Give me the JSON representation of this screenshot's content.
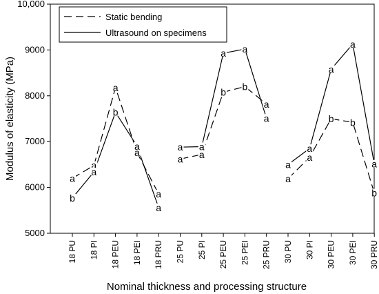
{
  "chart_data": {
    "type": "line",
    "xlabel": "Nominal thickness and processing structure",
    "ylabel": "Modulus of elasticity (MPa)",
    "ylim": [
      5000,
      10000
    ],
    "yticks": [
      "5000",
      "6000",
      "7000",
      "8000",
      "9000",
      "10,000"
    ],
    "categories": [
      "18 PU",
      "18 PI",
      "18 PEU",
      "18 PEI",
      "18 PRU",
      "25 PU",
      "25 PI",
      "25 PEU",
      "25 PEI",
      "25 PRU",
      "30 PU",
      "30 PI",
      "30 PEU",
      "30 PEI",
      "30 PRU"
    ],
    "groups": [
      [
        0,
        1,
        2,
        3,
        4
      ],
      [
        5,
        6,
        7,
        8,
        9
      ],
      [
        10,
        11,
        12,
        13,
        14
      ]
    ],
    "legend_position": "top-left",
    "series": [
      {
        "name": "Static bending",
        "style": "dashed",
        "values": [
          6200,
          6480,
          8180,
          6760,
          5860,
          6620,
          6720,
          8080,
          8200,
          7820,
          6190,
          6660,
          7500,
          7420,
          5880
        ],
        "labels": [
          "a",
          "a",
          "a",
          "a",
          "a",
          "a",
          "a",
          "b",
          "b",
          "a",
          "a",
          "a",
          "b",
          "b",
          "b"
        ]
      },
      {
        "name": "Ultrasound on specimens",
        "style": "solid",
        "values": [
          5770,
          6340,
          7640,
          6900,
          5560,
          6880,
          6890,
          8930,
          9020,
          7510,
          6500,
          6850,
          8580,
          9130,
          6510
        ],
        "labels": [
          "b",
          "a",
          "b",
          "a",
          "a",
          "a",
          "a",
          "a",
          "a",
          "a",
          "a",
          "a",
          "a",
          "a",
          "a"
        ]
      }
    ]
  }
}
